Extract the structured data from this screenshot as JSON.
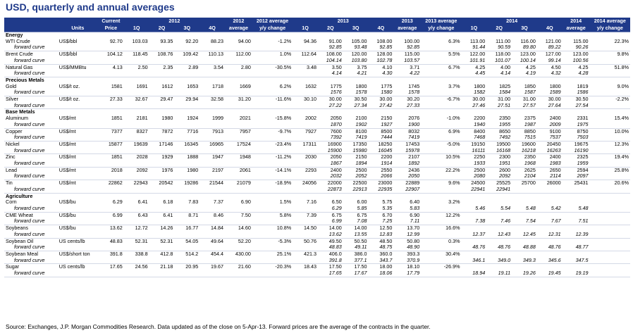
{
  "title": "USD, quarterly and annual averages",
  "header": {
    "row1": [
      "",
      "",
      "Current",
      "2012",
      "2012",
      "2012 average",
      "2013",
      "2013",
      "2013 average",
      "2014",
      "2014",
      "2014 average"
    ],
    "row2": [
      "",
      "Units",
      "Price",
      "1Q",
      "2Q",
      "3Q",
      "4Q",
      "average",
      "y/y change",
      "1Q",
      "2Q",
      "3Q",
      "4Q",
      "average",
      "y/y change",
      "1Q",
      "2Q",
      "3Q",
      "4Q",
      "average",
      "y/y change"
    ]
  },
  "rows": [
    {
      "type": "grp",
      "name": "Energy"
    },
    {
      "type": "data",
      "name": "WTI Crude",
      "units": "US$/bbl",
      "current": "92.70",
      "y12": [
        "103.03",
        "93.35",
        "92.20",
        "88.23"
      ],
      "avg12": "94.00",
      "chg12": "-1.2%",
      "y13": [
        "94.36",
        "91.00",
        "105.00",
        "108.00"
      ],
      "avg13": "100.00",
      "chg13": "6.3%",
      "y14": [
        "113.00",
        "111.00",
        "116.00",
        "121.00"
      ],
      "avg14": "115.00",
      "chg14": "22.3%"
    },
    {
      "type": "fwd",
      "name": "forward curve",
      "y13": [
        "",
        "92.85",
        "93.48",
        "92.85"
      ],
      "avg13": "92.85",
      "y14": [
        "91.44",
        "90.59",
        "89.80",
        "89.22"
      ],
      "avg14": "90.26"
    },
    {
      "type": "data",
      "name": "Brent Crude",
      "units": "US$/bbl",
      "current": "104.12",
      "y12": [
        "118.45",
        "108.76",
        "109.42",
        "110.13"
      ],
      "avg12": "112.00",
      "chg12": "1.0%",
      "y13": [
        "112.64",
        "108.00",
        "120.00",
        "128.00"
      ],
      "avg13": "115.00",
      "chg13": "5.5%",
      "y14": [
        "122.00",
        "118.00",
        "123.00",
        "127.00"
      ],
      "avg14": "123.00",
      "chg14": "9.8%"
    },
    {
      "type": "fwd",
      "name": "forward curve",
      "y13": [
        "",
        "104.14",
        "103.80",
        "102.78"
      ],
      "avg13": "103.57",
      "y14": [
        "101.91",
        "101.07",
        "100.14",
        "99.14"
      ],
      "avg14": "100.56"
    },
    {
      "type": "data",
      "name": "Natural Gas",
      "units": "US$/MMBtu",
      "current": "4.13",
      "y12": [
        "2.50",
        "2.35",
        "2.89",
        "3.54"
      ],
      "avg12": "2.80",
      "chg12": "-30.5%",
      "y13": [
        "3.48",
        "3.50",
        "3.75",
        "4.10"
      ],
      "avg13": "3.71",
      "chg13": "6.7%",
      "y14": [
        "4.25",
        "4.00",
        "4.25",
        "4.50"
      ],
      "avg14": "4.25",
      "chg14": "51.8%"
    },
    {
      "type": "fwd",
      "name": "forward curve",
      "y13": [
        "",
        "4.14",
        "4.21",
        "4.30"
      ],
      "avg13": "4.22",
      "y14": [
        "4.45",
        "4.14",
        "4.19",
        "4.32"
      ],
      "avg14": "4.28"
    },
    {
      "type": "grp",
      "name": "Precious Metals"
    },
    {
      "type": "data",
      "name": "Gold",
      "units": "US$/t oz.",
      "current": "1581",
      "y12": [
        "1691",
        "1612",
        "1653",
        "1718"
      ],
      "avg12": "1669",
      "chg12": "6.2%",
      "y13": [
        "1632",
        "1775",
        "1800",
        "1775"
      ],
      "avg13": "1745",
      "chg13": "3.7%",
      "y14": [
        "1800",
        "1825",
        "1850",
        "1800"
      ],
      "avg14": "1819",
      "chg14": "9.0%"
    },
    {
      "type": "fwd",
      "name": "forward curve",
      "y13": [
        "",
        "1576",
        "1578",
        "1580"
      ],
      "avg13": "1578",
      "y14": [
        "1582",
        "1584",
        "1587",
        "1589"
      ],
      "avg14": "1586"
    },
    {
      "type": "data",
      "name": "Silver",
      "units": "US$/t oz.",
      "current": "27.33",
      "y12": [
        "32.67",
        "29.47",
        "29.94",
        "32.58"
      ],
      "avg12": "31.20",
      "chg12": "-11.6%",
      "y13": [
        "30.10",
        "30.00",
        "30.50",
        "30.00"
      ],
      "avg13": "30.20",
      "chg13": "-6.7%",
      "y14": [
        "30.00",
        "31.00",
        "31.00",
        "30.00"
      ],
      "avg14": "30.50",
      "chg14": "-2.2%"
    },
    {
      "type": "fwd",
      "name": "forward curve",
      "y13": [
        "",
        "27.22",
        "27.34",
        "27.42"
      ],
      "avg13": "27.33",
      "y14": [
        "27.46",
        "27.51",
        "27.57",
        "27.64"
      ],
      "avg14": "27.54"
    },
    {
      "type": "grp",
      "name": "Base Metals"
    },
    {
      "type": "data",
      "name": "Aluminum",
      "units": "US$/mt",
      "current": "1851",
      "y12": [
        "2181",
        "1980",
        "1924",
        "1999"
      ],
      "avg12": "2021",
      "chg12": "-15.8%",
      "y13": [
        "2002",
        "2050",
        "2100",
        "2150"
      ],
      "avg13": "2076",
      "chg13": "-1.0%",
      "y14": [
        "2200",
        "2350",
        "2375",
        "2400"
      ],
      "avg14": "2331",
      "chg14": "15.4%"
    },
    {
      "type": "fwd",
      "name": "forward curve",
      "y13": [
        "",
        "1870",
        "1902",
        "1927"
      ],
      "avg13": "1900",
      "y14": [
        "1940",
        "1955",
        "1987",
        "2009"
      ],
      "avg14": "1975"
    },
    {
      "type": "data",
      "name": "Copper",
      "units": "US$/mt",
      "current": "7377",
      "y12": [
        "8327",
        "7872",
        "7716",
        "7913"
      ],
      "avg12": "7957",
      "chg12": "-9.7%",
      "y13": [
        "7927",
        "7600",
        "8100",
        "8500"
      ],
      "avg13": "8032",
      "chg13": "6.9%",
      "y14": [
        "8400",
        "8650",
        "8850",
        "9100"
      ],
      "avg14": "8750",
      "chg14": "10.0%"
    },
    {
      "type": "fwd",
      "name": "forward curve",
      "y13": [
        "",
        "7392",
        "7419",
        "7444"
      ],
      "avg13": "7419",
      "y14": [
        "7468",
        "7492",
        "7515",
        "7537"
      ],
      "avg14": "7503"
    },
    {
      "type": "data",
      "name": "Nickel",
      "units": "US$/mt",
      "current": "15877",
      "y12": [
        "19639",
        "17146",
        "16345",
        "16965"
      ],
      "avg12": "17524",
      "chg12": "-23.4%",
      "y13": [
        "17311",
        "16900",
        "17350",
        "18250"
      ],
      "avg13": "17453",
      "chg13": "-5.0%",
      "y14": [
        "19150",
        "19500",
        "19600",
        "20450"
      ],
      "avg14": "19675",
      "chg14": "12.3%"
    },
    {
      "type": "fwd",
      "name": "forward curve",
      "y13": [
        "",
        "15900",
        "15980",
        "16045"
      ],
      "avg13": "15978",
      "y14": [
        "16111",
        "16168",
        "16218",
        "16263"
      ],
      "avg14": "16190"
    },
    {
      "type": "data",
      "name": "Zinc",
      "units": "US$/mt",
      "current": "1851",
      "y12": [
        "2028",
        "1929",
        "1888",
        "1947"
      ],
      "avg12": "1948",
      "chg12": "-11.2%",
      "y13": [
        "2030",
        "2050",
        "2150",
        "2200"
      ],
      "avg13": "2107",
      "chg13": "10.5%",
      "y14": [
        "2250",
        "2300",
        "2350",
        "2400"
      ],
      "avg14": "2325",
      "chg14": "19.4%"
    },
    {
      "type": "fwd",
      "name": "forward curve",
      "y13": [
        "",
        "1867",
        "1894",
        "1914"
      ],
      "avg13": "1892",
      "y14": [
        "1933",
        "1951",
        "1968",
        "1983"
      ],
      "avg14": "1959"
    },
    {
      "type": "data",
      "name": "Lead",
      "units": "US$/mt",
      "current": "2018",
      "y12": [
        "2092",
        "1976",
        "1980",
        "2197"
      ],
      "avg12": "2061",
      "chg12": "-14.1%",
      "y13": [
        "2293",
        "2400",
        "2500",
        "2550"
      ],
      "avg13": "2436",
      "chg13": "22.2%",
      "y14": [
        "2500",
        "2600",
        "2625",
        "2650"
      ],
      "avg14": "2594",
      "chg14": "25.8%"
    },
    {
      "type": "fwd",
      "name": "forward curve",
      "y13": [
        "",
        "2032",
        "2052",
        "2066"
      ],
      "avg13": "2050",
      "y14": [
        "2080",
        "2092",
        "2104",
        "2114"
      ],
      "avg14": "2097"
    },
    {
      "type": "data",
      "name": "Tin",
      "units": "US$/mt",
      "current": "22862",
      "y12": [
        "22943",
        "20542",
        "19286",
        "21544"
      ],
      "avg12": "21079",
      "chg12": "-18.9%",
      "y13": [
        "24056",
        "22000",
        "22500",
        "23000"
      ],
      "avg13": "22889",
      "chg13": "9.6%",
      "y14": [
        "24500",
        "25525",
        "25700",
        "26000"
      ],
      "avg14": "25431",
      "chg14": "20.6%"
    },
    {
      "type": "fwd",
      "name": "forward curve",
      "y13": [
        "",
        "22873",
        "22913",
        "22935"
      ],
      "avg13": "22907",
      "y14": [
        "22941",
        "22941",
        "",
        ""
      ],
      "avg14": ""
    },
    {
      "type": "grp",
      "name": "Agriculture"
    },
    {
      "type": "data",
      "name": "Corn",
      "units": "US$/bu",
      "current": "6.29",
      "y12": [
        "6.41",
        "6.18",
        "7.83",
        "7.37"
      ],
      "avg12": "6.90",
      "chg12": "1.5%",
      "y13": [
        "7.16",
        "6.50",
        "6.00",
        "5.75"
      ],
      "avg13": "6.40",
      "chg13": "3.2%",
      "y14": [
        "",
        "",
        "",
        "",
        ""
      ],
      "avg14": "",
      "chg14": ""
    },
    {
      "type": "fwd",
      "name": "forward curve",
      "y13": [
        "",
        "6.29",
        "5.85",
        "5.35"
      ],
      "avg13": "5.83",
      "y14": [
        "5.46",
        "5.54",
        "5.48",
        "5.42"
      ],
      "avg14": "5.48"
    },
    {
      "type": "data",
      "name": "CME Wheat",
      "units": "US$/bu",
      "current": "6.99",
      "y12": [
        "6.43",
        "6.41",
        "8.71",
        "8.46"
      ],
      "avg12": "7.50",
      "chg12": "5.8%",
      "y13": [
        "7.39",
        "6.75",
        "6.75",
        "6.70"
      ],
      "avg13": "6.90",
      "chg13": "12.2%",
      "y14": [
        "",
        "",
        "",
        ""
      ],
      "avg14": "",
      "chg14": ""
    },
    {
      "type": "fwd",
      "name": "forward curve",
      "y13": [
        "",
        "6.99",
        "7.08",
        "7.25"
      ],
      "avg13": "7.11",
      "y14": [
        "7.38",
        "7.46",
        "7.54",
        "7.67"
      ],
      "avg14": "7.51"
    },
    {
      "type": "data",
      "name": "Soybeans",
      "units": "US$/bu",
      "current": "13.62",
      "y12": [
        "12.72",
        "14.26",
        "16.77",
        "14.84"
      ],
      "avg12": "14.60",
      "chg12": "10.8%",
      "y13": [
        "14.50",
        "14.00",
        "14.00",
        "12.50"
      ],
      "avg13": "13.70",
      "chg13": "16.6%",
      "y14": [
        "",
        "",
        "",
        ""
      ],
      "avg14": "",
      "chg14": ""
    },
    {
      "type": "fwd",
      "name": "forward curve",
      "y13": [
        "",
        "13.62",
        "13.55",
        "12.83"
      ],
      "avg13": "12.99",
      "y14": [
        "12.37",
        "12.43",
        "12.45",
        "12.31"
      ],
      "avg14": "12.39"
    },
    {
      "type": "data",
      "name": "Soybean Oil",
      "units": "US cents/lb",
      "current": "48.83",
      "y12": [
        "52.31",
        "52.31",
        "54.05",
        "49.64"
      ],
      "avg12": "52.20",
      "chg12": "-5.3%",
      "y13": [
        "50.76",
        "49.50",
        "50.50",
        "48.50"
      ],
      "avg13": "50.80",
      "chg13": "0.3%",
      "y14": [
        "",
        "",
        "",
        ""
      ],
      "avg14": "",
      "chg14": ""
    },
    {
      "type": "fwd",
      "name": "forward curve",
      "y13": [
        "",
        "48.83",
        "49.11",
        "48.75"
      ],
      "avg13": "48.90",
      "y14": [
        "48.76",
        "48.76",
        "48.88",
        "48.76"
      ],
      "avg14": "48.77"
    },
    {
      "type": "data",
      "name": "Soybean Meal",
      "units": "US$/short ton",
      "current": "391.8",
      "y12": [
        "338.8",
        "412.8",
        "514.2",
        "454.4"
      ],
      "avg12": "430.00",
      "chg12": "25.1%",
      "y13": [
        "421.3",
        "406.0",
        "386.0",
        "360.0"
      ],
      "avg13": "393.3",
      "chg13": "30.4%",
      "y14": [
        "",
        "",
        "",
        ""
      ],
      "avg14": "",
      "chg14": ""
    },
    {
      "type": "fwd",
      "name": "forward curve",
      "y13": [
        "",
        "391.8",
        "377.1",
        "343.7"
      ],
      "avg13": "370.9",
      "y14": [
        "346.1",
        "349.0",
        "349.3",
        "345.6"
      ],
      "avg14": "347.5"
    },
    {
      "type": "data",
      "name": "Sugar",
      "units": "US cents/lb",
      "current": "17.65",
      "y12": [
        "24.56",
        "21.18",
        "20.95",
        "19.67"
      ],
      "avg12": "21.60",
      "chg12": "-20.3%",
      "y13": [
        "18.43",
        "17.50",
        "17.50",
        "18.00"
      ],
      "avg13": "18.10",
      "chg13": "-26.9%",
      "y14": [
        "",
        "",
        "",
        ""
      ],
      "avg14": "",
      "chg14": ""
    },
    {
      "type": "fwd",
      "name": "forward curve",
      "y13": [
        "",
        "17.65",
        "17.67",
        "18.06"
      ],
      "avg13": "17.79",
      "y14": [
        "18.94",
        "19.11",
        "19.26",
        "19.45"
      ],
      "avg14": "19.19"
    }
  ],
  "source": "Source: Exchanges, J.P. Morgan Commodities Research.  Data updated as of the close on 5-Apr-13.  Forward prices are the average of the contracts in the quarter."
}
